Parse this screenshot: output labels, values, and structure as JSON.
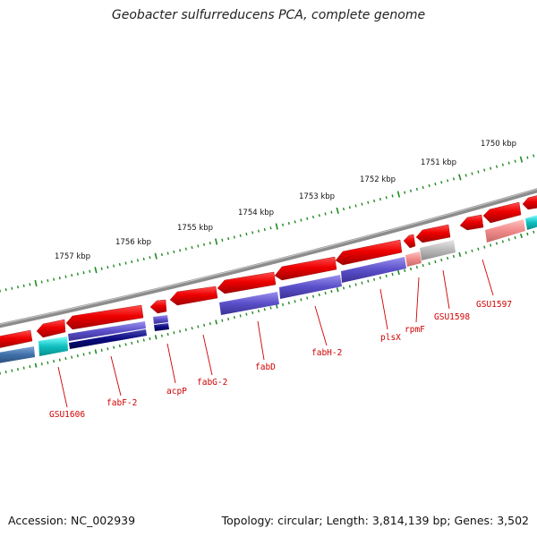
{
  "title": "Geobacter sulfurreducens PCA, complete genome",
  "footer": {
    "accession": "Accession: NC_002939",
    "stats": "Topology: circular; Length: 3,814,139 bp; Genes: 3,502"
  },
  "colors": {
    "backbone": "#7f7f7f",
    "tick": "#1f8a1f",
    "gene_label": "#d00000",
    "cds_red": "#ee0000",
    "protein_blue": "#5a4fc8",
    "protein_navy": "#0a0a80",
    "protein_steel": "#3f6fa8",
    "protein_cyan": "#10c0c0",
    "protein_pink": "#f08a8a",
    "protein_gray": "#b8b8b8"
  },
  "ruler": [
    {
      "label": "1750 kbp"
    },
    {
      "label": "1751 kbp"
    },
    {
      "label": "1752 kbp"
    },
    {
      "label": "1753 kbp"
    },
    {
      "label": "1754 kbp"
    },
    {
      "label": "1755 kbp"
    },
    {
      "label": "1756 kbp"
    },
    {
      "label": "1757 kbp"
    }
  ],
  "genes": [
    {
      "label": "GSU1597"
    },
    {
      "label": "GSU1598"
    },
    {
      "label": "rpmF"
    },
    {
      "label": "plsX"
    },
    {
      "label": "fabH-2"
    },
    {
      "label": "fabD"
    },
    {
      "label": "fabG-2"
    },
    {
      "label": "acpP"
    },
    {
      "label": "fabF-2"
    },
    {
      "label": "GSU1606"
    }
  ]
}
